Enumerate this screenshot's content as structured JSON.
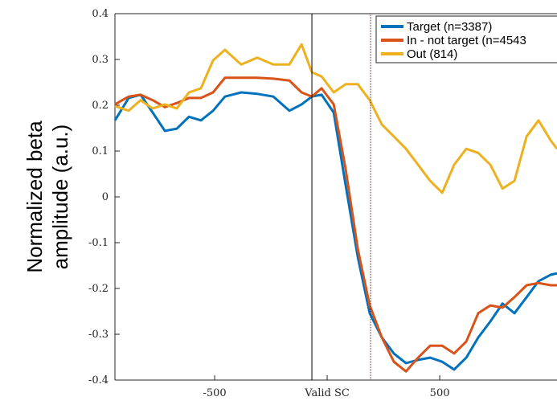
{
  "chart_data": {
    "type": "line",
    "ylabel": [
      "Normalized beta",
      "amplitude (a.u.)"
    ],
    "x": [
      -943,
      -882,
      -829,
      -775,
      -721,
      -668,
      -614,
      -561,
      -507,
      -454,
      -382,
      -311,
      -239,
      -168,
      -114,
      -68,
      -25,
      29,
      82,
      136,
      189,
      243,
      296,
      350,
      404,
      457,
      511,
      564,
      618,
      671,
      725,
      779,
      832,
      886,
      939,
      993,
      1021
    ],
    "series": [
      {
        "name": "Target (n=3387)",
        "color": "#0072bd",
        "values": [
          0.167,
          0.216,
          0.223,
          0.184,
          0.144,
          0.149,
          0.175,
          0.167,
          0.188,
          0.219,
          0.228,
          0.225,
          0.219,
          0.188,
          0.202,
          0.219,
          0.223,
          0.184,
          0.026,
          -0.132,
          -0.254,
          -0.307,
          -0.342,
          -0.363,
          -0.356,
          -0.351,
          -0.36,
          -0.377,
          -0.351,
          -0.307,
          -0.272,
          -0.233,
          -0.254,
          -0.219,
          -0.184,
          -0.17,
          -0.167
        ]
      },
      {
        "name": "In - not target (n=4543",
        "color": "#d95319",
        "values": [
          0.202,
          0.219,
          0.223,
          0.211,
          0.196,
          0.205,
          0.216,
          0.216,
          0.228,
          0.26,
          0.26,
          0.26,
          0.258,
          0.254,
          0.228,
          0.219,
          0.237,
          0.202,
          0.061,
          -0.114,
          -0.237,
          -0.307,
          -0.36,
          -0.381,
          -0.351,
          -0.325,
          -0.325,
          -0.342,
          -0.316,
          -0.254,
          -0.237,
          -0.242,
          -0.219,
          -0.193,
          -0.188,
          -0.193,
          -0.193
        ]
      },
      {
        "name": "Out (814)",
        "color": "#edb120",
        "values": [
          0.198,
          0.188,
          0.211,
          0.193,
          0.202,
          0.193,
          0.228,
          0.237,
          0.298,
          0.321,
          0.289,
          0.304,
          0.289,
          0.289,
          0.333,
          0.272,
          0.263,
          0.228,
          0.246,
          0.246,
          0.211,
          0.158,
          0.132,
          0.105,
          0.07,
          0.035,
          0.009,
          0.07,
          0.105,
          0.096,
          0.07,
          0.018,
          0.035,
          0.132,
          0.167,
          0.123,
          0.105
        ]
      }
    ],
    "xlim": [
      -943,
      1021
    ],
    "ylim": [
      -0.4,
      0.4
    ],
    "xticks": [
      -500,
      {
        "value": 0,
        "label": "Valid SC"
      },
      500
    ],
    "yticks": [
      -0.4,
      -0.3,
      -0.2,
      -0.1,
      0,
      0.1,
      0.2,
      0.3,
      0.4
    ],
    "vlines": [
      {
        "value": -68,
        "color": "#000000",
        "style": "solid"
      },
      {
        "value": 193,
        "color": "#7a1a1a",
        "style": "dotted"
      }
    ],
    "legend": "top-right"
  }
}
